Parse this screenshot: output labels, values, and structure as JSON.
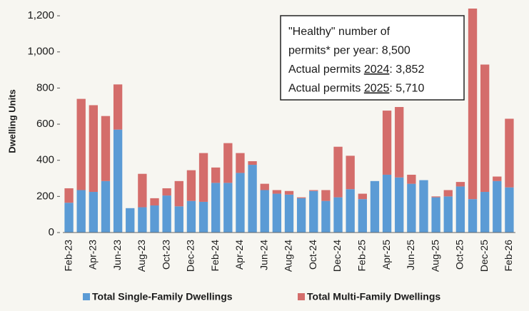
{
  "chart_data": {
    "type": "stacked_bar",
    "y_label": "Dwelling Units",
    "categories": [
      "Feb-23",
      null,
      "Apr-23",
      null,
      "Jun-23",
      null,
      "Aug-23",
      null,
      "Oct-23",
      null,
      "Dec-23",
      null,
      "Feb-24",
      null,
      "Apr-24",
      null,
      "Jun-24",
      null,
      "Aug-24",
      null,
      "Oct-24",
      null,
      "Dec-24",
      null,
      "Feb-25",
      null,
      "Apr-25",
      null,
      "Jun-25",
      null,
      "Aug-25",
      null,
      "Oct-25",
      null,
      "Dec-25",
      null,
      "Feb-26"
    ],
    "series": [
      {
        "name": "Total Single-Family Dwellings",
        "color": "#5b9bd5",
        "values": [
          165,
          235,
          225,
          285,
          570,
          135,
          140,
          150,
          205,
          145,
          175,
          170,
          275,
          275,
          330,
          375,
          235,
          215,
          210,
          190,
          230,
          175,
          195,
          240,
          185,
          285,
          320,
          305,
          270,
          290,
          195,
          200,
          255,
          185,
          225,
          285,
          250
        ]
      },
      {
        "name": "Total Multi-Family Dwellings",
        "color": "#d46d6b",
        "values": [
          80,
          505,
          480,
          360,
          250,
          0,
          185,
          40,
          40,
          140,
          170,
          270,
          85,
          220,
          110,
          20,
          35,
          20,
          20,
          5,
          5,
          60,
          280,
          185,
          30,
          0,
          355,
          390,
          50,
          0,
          5,
          35,
          25,
          1055,
          705,
          25,
          380
        ]
      }
    ],
    "ylim": [
      0,
      1240
    ],
    "yticks": [
      0,
      200,
      400,
      600,
      800,
      {
        "value": 1000,
        "label": "1,000"
      },
      {
        "value": 1200,
        "label": "1,200"
      }
    ],
    "annotation": {
      "lines": [
        [
          {
            "text": "\"Healthy\" number of"
          }
        ],
        [
          {
            "text": "permits* per year: 8,500"
          }
        ],
        [
          {
            "text": "Actual permits "
          },
          {
            "text": "2024",
            "underline": true
          },
          {
            "text": ": 3,852"
          }
        ],
        [
          {
            "text": "Actual permits "
          },
          {
            "text": "2025",
            "underline": true
          },
          {
            "text": ": 5,710"
          }
        ]
      ]
    }
  }
}
